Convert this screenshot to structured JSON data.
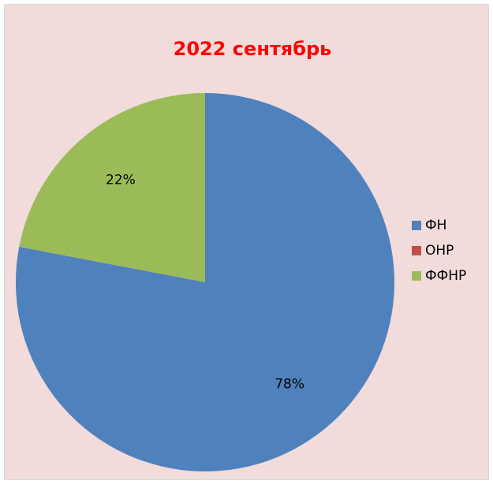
{
  "chart_data": {
    "type": "pie",
    "title": "2022 сентябрь",
    "categories": [
      "ФН",
      "ОНР",
      "ФФНР"
    ],
    "values": [
      78,
      0,
      22
    ],
    "value_labels": [
      "78%",
      null,
      "22%"
    ],
    "colors": [
      "#4f81bd",
      "#c0504d",
      "#9bbb59"
    ],
    "legend": "right"
  }
}
